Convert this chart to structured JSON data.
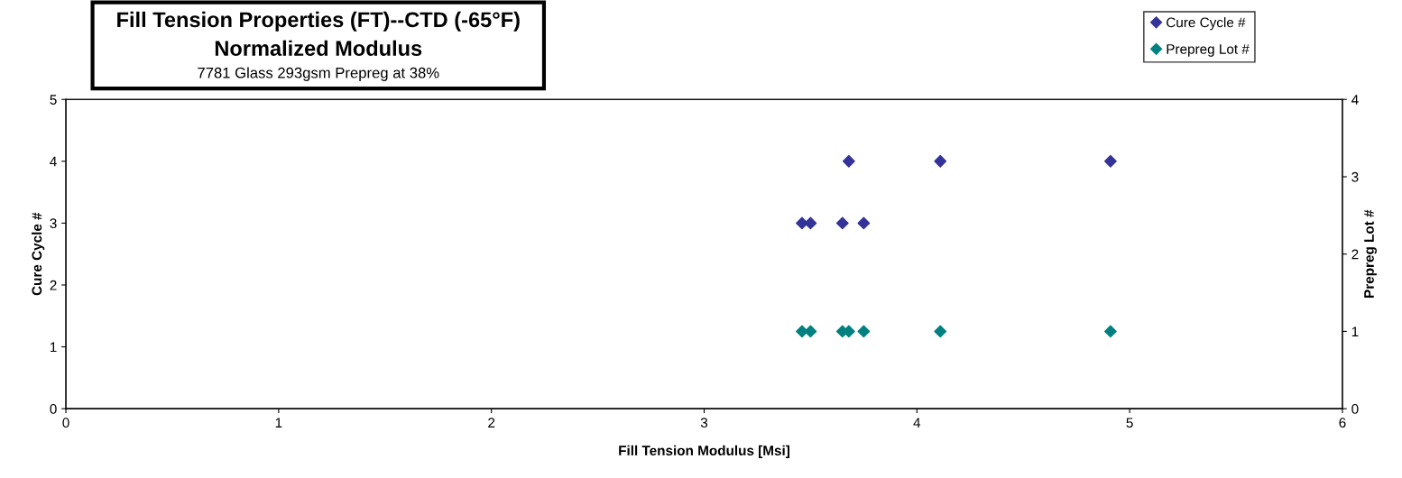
{
  "chart_data": {
    "type": "scatter",
    "title": "Fill Tension Properties (FT)--CTD (-65°F)",
    "subtitle": "Normalized Modulus",
    "annotations": [
      "7781 Glass 293gsm Prepreg at 38%"
    ],
    "xlabel": "Fill Tension Modulus [Msi]",
    "ylabel": "Cure Cycle #",
    "y2label": "Prepreg Lot #",
    "series": [
      {
        "name": "Cure Cycle #",
        "color": "#333399",
        "x": [
          3.46,
          3.5,
          3.65,
          3.75,
          3.68,
          4.11,
          4.91
        ],
        "values": [
          3,
          3,
          3,
          3,
          4,
          4,
          4
        ]
      },
      {
        "name": "Prepreg Lot #",
        "color": "#008080",
        "axis": "y2",
        "x": [
          3.46,
          3.5,
          3.65,
          3.68,
          3.75,
          4.11,
          4.91
        ],
        "values": [
          1,
          1,
          1,
          1,
          1,
          1,
          1
        ]
      }
    ],
    "xlim": [
      0,
      6
    ],
    "xticks": [
      0,
      1,
      2,
      3,
      4,
      5,
      6
    ],
    "ylim": [
      0,
      5
    ],
    "yticks": [
      0,
      1,
      2,
      3,
      4,
      5
    ],
    "y2lim": [
      0,
      4
    ],
    "y2ticks": [
      0,
      1,
      2,
      3,
      4
    ],
    "marker": "diamond",
    "grid": false,
    "legend": "top right"
  }
}
